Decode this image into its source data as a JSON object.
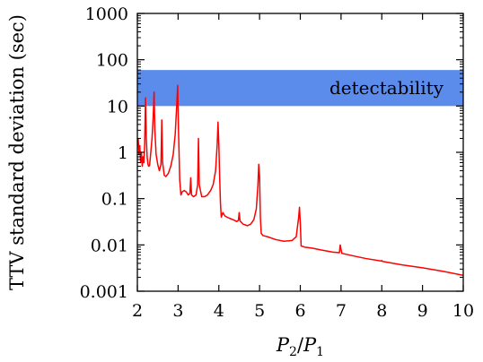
{
  "chart_data": {
    "type": "line",
    "title": "",
    "xlabel": "P2/P1",
    "ylabel": "TTV standard deviation (sec)",
    "xlim": [
      2,
      10
    ],
    "ylim": [
      0.001,
      1000
    ],
    "yscale": "log",
    "x_ticks": [
      2,
      3,
      4,
      5,
      6,
      7,
      8,
      9,
      10
    ],
    "x_tick_labels": [
      "2",
      "3",
      "4",
      "5",
      "6",
      "7",
      "8",
      "9",
      "10"
    ],
    "y_ticks": [
      0.001,
      0.01,
      0.1,
      1,
      10,
      100,
      1000
    ],
    "y_tick_labels": [
      "0.001",
      "0.01",
      "0.1",
      "1",
      "10",
      "100",
      "1000"
    ],
    "grid": false,
    "legend": "none",
    "band": {
      "label": "detectability",
      "y_range": [
        10,
        60
      ],
      "color": "#5b8cec"
    },
    "series": [
      {
        "color": "#ff0000",
        "points": [
          [
            2.02,
            2.0
          ],
          [
            2.04,
            0.9
          ],
          [
            2.06,
            1.4
          ],
          [
            2.08,
            0.6
          ],
          [
            2.1,
            1.0
          ],
          [
            2.12,
            0.5
          ],
          [
            2.14,
            0.8
          ],
          [
            2.16,
            0.6
          ],
          [
            2.18,
            1.5
          ],
          [
            2.2,
            15
          ],
          [
            2.22,
            2.0
          ],
          [
            2.24,
            0.8
          ],
          [
            2.26,
            0.55
          ],
          [
            2.28,
            0.5
          ],
          [
            2.3,
            0.52
          ],
          [
            2.33,
            1.0
          ],
          [
            2.36,
            2.0
          ],
          [
            2.39,
            6.0
          ],
          [
            2.41,
            20
          ],
          [
            2.43,
            3.0
          ],
          [
            2.46,
            0.9
          ],
          [
            2.5,
            0.55
          ],
          [
            2.54,
            0.4
          ],
          [
            2.58,
            0.55
          ],
          [
            2.6,
            5.0
          ],
          [
            2.62,
            0.6
          ],
          [
            2.66,
            0.32
          ],
          [
            2.7,
            0.3
          ],
          [
            2.76,
            0.35
          ],
          [
            2.82,
            0.5
          ],
          [
            2.88,
            0.9
          ],
          [
            2.93,
            2.5
          ],
          [
            2.97,
            12
          ],
          [
            2.99,
            28
          ],
          [
            3.01,
            3.0
          ],
          [
            3.04,
            0.25
          ],
          [
            3.07,
            0.12
          ],
          [
            3.1,
            0.14
          ],
          [
            3.15,
            0.15
          ],
          [
            3.2,
            0.14
          ],
          [
            3.25,
            0.12
          ],
          [
            3.29,
            0.13
          ],
          [
            3.31,
            0.28
          ],
          [
            3.33,
            0.12
          ],
          [
            3.38,
            0.11
          ],
          [
            3.44,
            0.12
          ],
          [
            3.48,
            0.2
          ],
          [
            3.5,
            2.0
          ],
          [
            3.52,
            0.2
          ],
          [
            3.58,
            0.11
          ],
          [
            3.65,
            0.11
          ],
          [
            3.72,
            0.12
          ],
          [
            3.8,
            0.15
          ],
          [
            3.86,
            0.2
          ],
          [
            3.92,
            0.4
          ],
          [
            3.96,
            1.5
          ],
          [
            3.98,
            4.5
          ],
          [
            4.0,
            1.5
          ],
          [
            4.02,
            0.3
          ],
          [
            4.04,
            0.08
          ],
          [
            4.06,
            0.04
          ],
          [
            4.1,
            0.05
          ],
          [
            4.15,
            0.042
          ],
          [
            4.25,
            0.038
          ],
          [
            4.35,
            0.035
          ],
          [
            4.44,
            0.032
          ],
          [
            4.48,
            0.034
          ],
          [
            4.5,
            0.05
          ],
          [
            4.52,
            0.033
          ],
          [
            4.6,
            0.028
          ],
          [
            4.7,
            0.026
          ],
          [
            4.78,
            0.028
          ],
          [
            4.86,
            0.035
          ],
          [
            4.92,
            0.06
          ],
          [
            4.96,
            0.2
          ],
          [
            4.98,
            0.55
          ],
          [
            5.0,
            0.3
          ],
          [
            5.02,
            0.04
          ],
          [
            5.04,
            0.018
          ],
          [
            5.08,
            0.016
          ],
          [
            5.2,
            0.015
          ],
          [
            5.4,
            0.013
          ],
          [
            5.6,
            0.012
          ],
          [
            5.8,
            0.0125
          ],
          [
            5.9,
            0.015
          ],
          [
            5.96,
            0.04
          ],
          [
            5.98,
            0.065
          ],
          [
            6.0,
            0.03
          ],
          [
            6.02,
            0.0095
          ],
          [
            6.1,
            0.009
          ],
          [
            6.3,
            0.0085
          ],
          [
            6.5,
            0.0078
          ],
          [
            6.8,
            0.007
          ],
          [
            6.96,
            0.0068
          ],
          [
            6.98,
            0.01
          ],
          [
            7.0,
            0.008
          ],
          [
            7.02,
            0.0066
          ],
          [
            7.3,
            0.0058
          ],
          [
            7.6,
            0.0051
          ],
          [
            7.98,
            0.0045
          ],
          [
            8.0,
            0.0046
          ],
          [
            8.02,
            0.0044
          ],
          [
            8.5,
            0.0037
          ],
          [
            9.0,
            0.0032
          ],
          [
            9.5,
            0.0027
          ],
          [
            10.0,
            0.0022
          ]
        ]
      }
    ]
  }
}
